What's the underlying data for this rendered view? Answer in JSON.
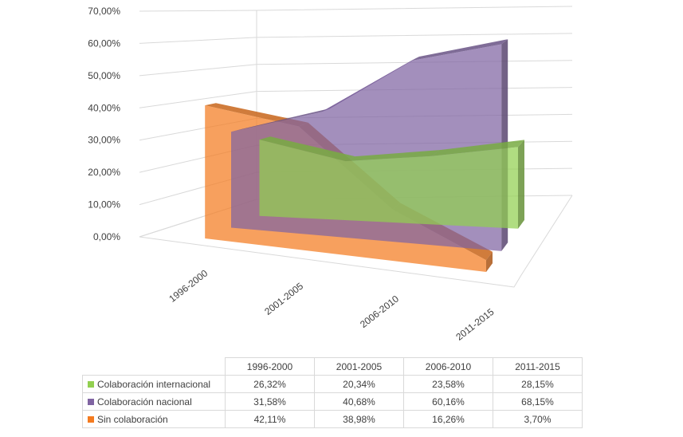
{
  "chart_data": {
    "type": "area",
    "three_d": true,
    "categories": [
      "1996-2000",
      "2001-2005",
      "2006-2010",
      "2011-2015"
    ],
    "ylim": [
      0,
      70
    ],
    "y_ticks": [
      "0,00%",
      "10,00%",
      "20,00%",
      "30,00%",
      "40,00%",
      "50,00%",
      "60,00%",
      "70,00%"
    ],
    "grid": true,
    "legend": "data-table",
    "series": [
      {
        "name": "Colaboración internacional",
        "color": "#92d050",
        "values": [
          26.32,
          20.34,
          23.58,
          28.15
        ],
        "labels": [
          "26,32%",
          "20,34%",
          "23,58%",
          "28,15%"
        ]
      },
      {
        "name": "Colaboración nacional",
        "color": "#8064a2",
        "values": [
          31.58,
          40.68,
          60.16,
          68.15
        ],
        "labels": [
          "31,58%",
          "40,68%",
          "60,16%",
          "68,15%"
        ]
      },
      {
        "name": "Sin colaboración",
        "color": "#f47b20",
        "values": [
          42.11,
          38.98,
          16.26,
          3.7
        ],
        "labels": [
          "42,11%",
          "38,98%",
          "16,26%",
          "3,70%"
        ]
      }
    ]
  }
}
